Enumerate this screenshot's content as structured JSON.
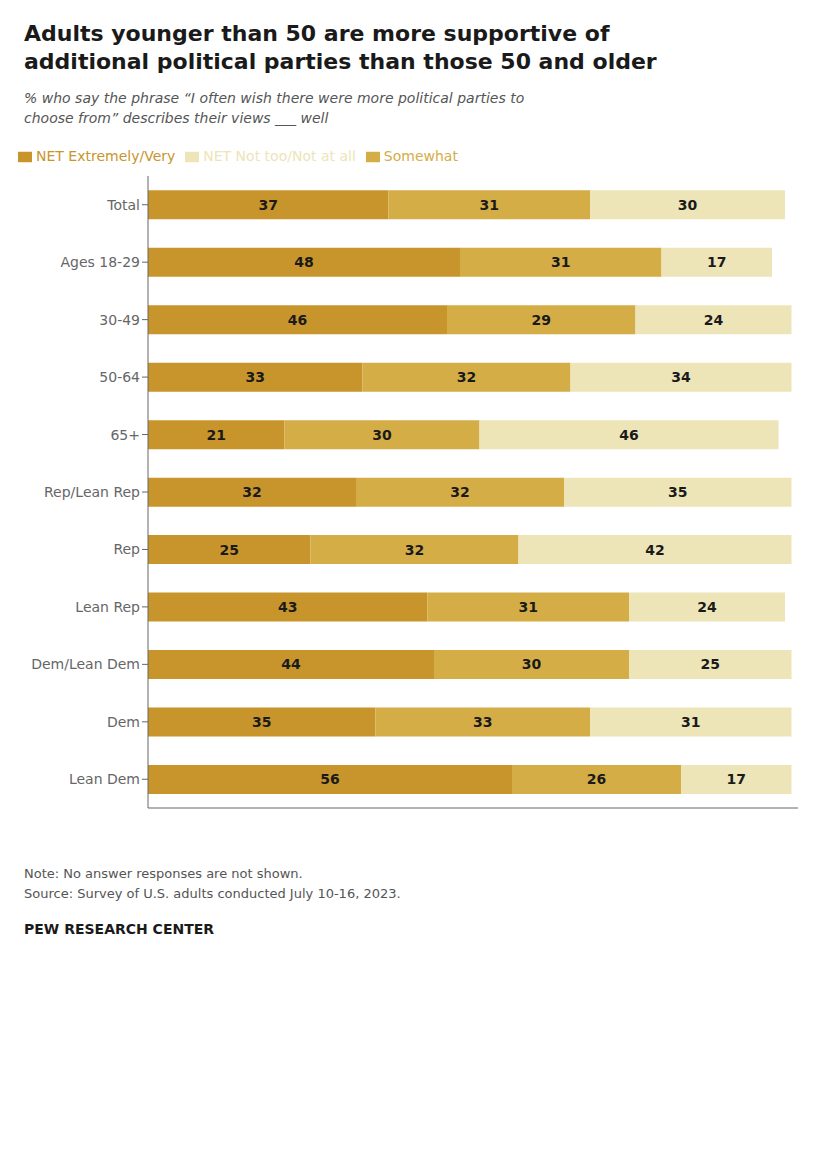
{
  "chart_data": {
    "type": "bar",
    "orientation": "horizontal",
    "stacked": true,
    "data_labels": true,
    "tick_labels": "y",
    "grid": false,
    "legend": "top",
    "title": "Adults younger than 50 are more supportive of\nadditional political parties than those 50 and older",
    "subtitle": "% who say the phrase “I often wish there were more political parties to\nchoose from” describes their views ___ well",
    "annotations": [
      "Note: No answer responses are not shown.",
      "Source: Survey of U.S. adults conducted July 10-16, 2023.",
      "PEW RESEARCH CENTER"
    ],
    "categories": [
      "Total",
      "Ages 18-29",
      "30-49",
      "50-64",
      "65+",
      "Rep/Lean Rep",
      "Rep",
      "Lean Rep",
      "Dem/Lean Dem",
      "Dem",
      "Lean Dem"
    ],
    "series": [
      {
        "name": "NET Extremely/Very",
        "color": "#c8952c",
        "values": [
          37,
          48,
          46,
          33,
          21,
          32,
          25,
          43,
          44,
          35,
          56
        ]
      },
      {
        "name": "Somewhat",
        "color": "#d4ad47",
        "values": [
          31,
          31,
          29,
          32,
          30,
          32,
          32,
          31,
          30,
          33,
          26
        ]
      },
      {
        "name": "NET Not too/Not at all",
        "color": "#ede4b8",
        "values": [
          30,
          17,
          24,
          34,
          46,
          35,
          42,
          24,
          25,
          31,
          17
        ]
      }
    ],
    "xlim": [
      0,
      100
    ],
    "xticks": []
  }
}
